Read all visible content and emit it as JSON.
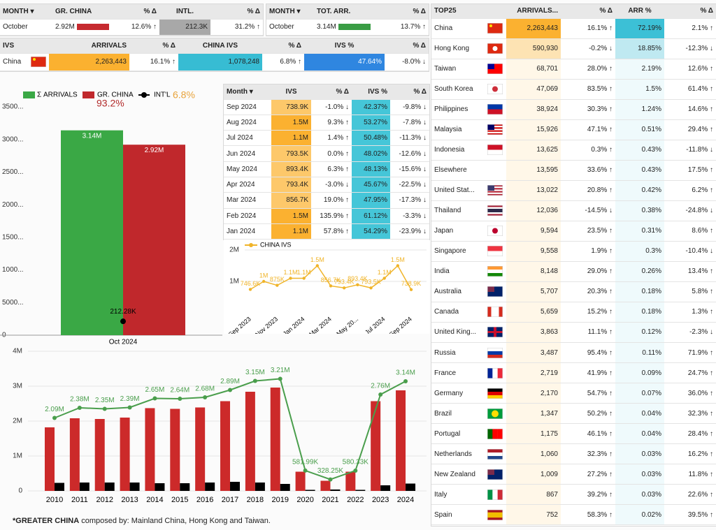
{
  "month_summary": {
    "headers": [
      "MONTH ▾",
      "GR. CHINA",
      "% Δ",
      "INTL.",
      "% Δ"
    ],
    "rows": [
      [
        "October",
        "2.92M",
        "12.6% ↑",
        "212.3K",
        "31.2% ↑"
      ]
    ]
  },
  "total_summary": {
    "headers": [
      "MONTH ▾",
      "TOT. ARR.",
      "% Δ"
    ],
    "rows": [
      [
        "October",
        "3.14M",
        "13.7% ↑"
      ]
    ]
  },
  "ivs_summary": {
    "headers": [
      "IVS",
      "ARRIVALS",
      "% Δ",
      "CHINA IVS",
      "% Δ",
      "IVS %",
      "% Δ"
    ],
    "rows": [
      [
        "China",
        "2,263,443",
        "16.1% ↑",
        "1,078,248",
        "6.8% ↑",
        "47.64%",
        "-8.0% ↓"
      ]
    ]
  },
  "ivs_monthly": {
    "headers": [
      "Month ▾",
      "IVS",
      "% Δ",
      "IVS %",
      "% Δ"
    ],
    "rows": [
      [
        "Sep 2024",
        "738.9K",
        "-1.0% ↓",
        "42.37%",
        "-9.8% ↓"
      ],
      [
        "Aug 2024",
        "1.5M",
        "9.3% ↑",
        "53.27%",
        "-7.8% ↓"
      ],
      [
        "Jul 2024",
        "1.1M",
        "1.4% ↑",
        "50.48%",
        "-11.3% ↓"
      ],
      [
        "Jun 2024",
        "793.5K",
        "0.0% ↑",
        "48.02%",
        "-12.6% ↓"
      ],
      [
        "May 2024",
        "893.4K",
        "6.3% ↑",
        "48.13%",
        "-15.6% ↓"
      ],
      [
        "Apr 2024",
        "793.4K",
        "-3.0% ↓",
        "45.67%",
        "-22.5% ↓"
      ],
      [
        "Mar 2024",
        "856.7K",
        "19.0% ↑",
        "47.95%",
        "-17.3% ↓"
      ],
      [
        "Feb 2024",
        "1.5M",
        "135.9% ↑",
        "61.12%",
        "-3.3% ↓"
      ],
      [
        "Jan 2024",
        "1.1M",
        "57.8% ↑",
        "54.29%",
        "-23.9% ↓"
      ]
    ]
  },
  "top25": {
    "headers": [
      "TOP25",
      "ARRIVALS...",
      "% Δ",
      "ARR %",
      "% Δ"
    ],
    "rows": [
      [
        "China",
        "2,263,443",
        "16.1% ↑",
        "72.19%",
        "2.1% ↑"
      ],
      [
        "Hong Kong",
        "590,930",
        "-0.2% ↓",
        "18.85%",
        "-12.3% ↓"
      ],
      [
        "Taiwan",
        "68,701",
        "28.0% ↑",
        "2.19%",
        "12.6% ↑"
      ],
      [
        "South Korea",
        "47,069",
        "83.5% ↑",
        "1.5%",
        "61.4% ↑"
      ],
      [
        "Philippines",
        "38,924",
        "30.3% ↑",
        "1.24%",
        "14.6% ↑"
      ],
      [
        "Malaysia",
        "15,926",
        "47.1% ↑",
        "0.51%",
        "29.4% ↑"
      ],
      [
        "Indonesia",
        "13,625",
        "0.3% ↑",
        "0.43%",
        "-11.8% ↓"
      ],
      [
        "Elsewhere",
        "13,595",
        "33.6% ↑",
        "0.43%",
        "17.5% ↑"
      ],
      [
        "United Stat...",
        "13,022",
        "20.8% ↑",
        "0.42%",
        "6.2% ↑"
      ],
      [
        "Thailand",
        "12,036",
        "-14.5% ↓",
        "0.38%",
        "-24.8% ↓"
      ],
      [
        "Japan",
        "9,594",
        "23.5% ↑",
        "0.31%",
        "8.6% ↑"
      ],
      [
        "Singapore",
        "9,558",
        "1.9% ↑",
        "0.3%",
        "-10.4% ↓"
      ],
      [
        "India",
        "8,148",
        "29.0% ↑",
        "0.26%",
        "13.4% ↑"
      ],
      [
        "Australia",
        "5,707",
        "20.3% ↑",
        "0.18%",
        "5.8% ↑"
      ],
      [
        "Canada",
        "5,659",
        "15.2% ↑",
        "0.18%",
        "1.3% ↑"
      ],
      [
        "United King...",
        "3,863",
        "11.1% ↑",
        "0.12%",
        "-2.3% ↓"
      ],
      [
        "Russia",
        "3,487",
        "95.4% ↑",
        "0.11%",
        "71.9% ↑"
      ],
      [
        "France",
        "2,719",
        "41.9% ↑",
        "0.09%",
        "24.7% ↑"
      ],
      [
        "Germany",
        "2,170",
        "54.7% ↑",
        "0.07%",
        "36.0% ↑"
      ],
      [
        "Brazil",
        "1,347",
        "50.2% ↑",
        "0.04%",
        "32.3% ↑"
      ],
      [
        "Portugal",
        "1,175",
        "46.1% ↑",
        "0.04%",
        "28.4% ↑"
      ],
      [
        "Netherlands",
        "1,060",
        "32.3% ↑",
        "0.03%",
        "16.2% ↑"
      ],
      [
        "New Zealand",
        "1,009",
        "27.2% ↑",
        "0.03%",
        "11.8% ↑"
      ],
      [
        "Italy",
        "867",
        "39.2% ↑",
        "0.03%",
        "22.6% ↑"
      ],
      [
        "Spain",
        "752",
        "58.3% ↑",
        "0.02%",
        "39.5% ↑"
      ]
    ]
  },
  "chart_data": [
    {
      "type": "bar",
      "categories": [
        "Oct 2024"
      ],
      "series": [
        {
          "name": "Σ ARRIVALS",
          "color": "#3aa845",
          "mark": "bar",
          "values": [
            3140000
          ],
          "value_labels": [
            "3.14M"
          ]
        },
        {
          "name": "GR. CHINA",
          "color": "#c0282c",
          "mark": "bar",
          "values": [
            2920000
          ],
          "value_labels": [
            "2.92M"
          ]
        },
        {
          "name": "INT'L",
          "color": "#000000",
          "mark": "point",
          "values": [
            212280
          ],
          "value_labels": [
            "212.28K"
          ]
        }
      ],
      "annotations": [
        "93.2%",
        "6.8%"
      ],
      "ylim": [
        0,
        3800000
      ],
      "yticks": [
        0,
        {
          "value": 500000,
          "label": "5000..."
        },
        {
          "value": 1000000,
          "label": "1000..."
        },
        {
          "value": 1500000,
          "label": "1500..."
        },
        {
          "value": 2000000,
          "label": "2000..."
        },
        {
          "value": 2500000,
          "label": "2500..."
        },
        {
          "value": 3000000,
          "label": "3000..."
        },
        {
          "value": 3500000,
          "label": "3500..."
        }
      ]
    },
    {
      "type": "line",
      "categories": [
        "Sep 2023",
        null,
        "Nov 2023",
        null,
        "Jan 2024",
        null,
        "Mar 2024",
        null,
        "May 20...",
        null,
        "Jul 2024",
        null,
        "Sep 2024"
      ],
      "series": [
        {
          "name": "CHINA IVS",
          "color": "#f0b429",
          "values": [
            746600,
            1000000,
            875000,
            1100000,
            1100000,
            1500000,
            856700,
            793400,
            893400,
            793500,
            1100000,
            1500000,
            738900
          ],
          "value_labels": [
            "746.6K",
            "1M",
            "875K",
            "1.1M",
            "1.1M",
            "1.5M",
            "856.7K",
            "793.4K",
            "893.4K",
            "793.5K",
            "1.1M",
            "1.5M",
            "738.9K"
          ]
        }
      ],
      "ylim": [
        0,
        2000000
      ],
      "yticks": [
        {
          "value": 1000000,
          "label": "1M"
        },
        {
          "value": 2000000,
          "label": "2M"
        }
      ],
      "grid": true
    },
    {
      "type": "bar_line",
      "categories": [
        "2010",
        "2011",
        "2012",
        "2013",
        "2014",
        "2015",
        "2016",
        "2017",
        "2018",
        "2019",
        "2020",
        "2021",
        "2022",
        "2023",
        "2024"
      ],
      "series": [
        {
          "mark": "line",
          "color": "#4a9e4c",
          "values": [
            2090000,
            2380000,
            2350000,
            2390000,
            2650000,
            2640000,
            2680000,
            2890000,
            3150000,
            3210000,
            581990,
            328250,
            580330,
            2760000,
            3140000
          ],
          "value_labels": [
            "2.09M",
            "2.38M",
            "2.35M",
            "2.39M",
            "2.65M",
            "2.64M",
            "2.68M",
            "2.89M",
            "3.15M",
            "3.21M",
            "581.99K",
            "328.25K",
            "580.33K",
            "2.76M",
            "3.14M"
          ]
        },
        {
          "mark": "bar",
          "color": "#cc2a2a",
          "values": [
            1820000,
            2080000,
            2060000,
            2100000,
            2370000,
            2350000,
            2390000,
            2570000,
            2840000,
            2960000,
            550000,
            290000,
            550000,
            2570000,
            2880000
          ]
        },
        {
          "mark": "bar",
          "color": "#000000",
          "values": [
            230000,
            240000,
            240000,
            240000,
            220000,
            220000,
            240000,
            260000,
            240000,
            200000,
            30000,
            40000,
            30000,
            160000,
            210000
          ]
        }
      ],
      "ylim": [
        0,
        4000000
      ],
      "yticks": [
        0,
        {
          "value": 1000000,
          "label": "1M"
        },
        {
          "value": 2000000,
          "label": "2M"
        },
        {
          "value": 3000000,
          "label": "3M"
        },
        {
          "value": 4000000,
          "label": "4M"
        }
      ]
    }
  ],
  "footnote": {
    "bold": "*GREATER CHINA",
    "text": " composed by: Mainland China, Hong Kong and Taiwan."
  }
}
